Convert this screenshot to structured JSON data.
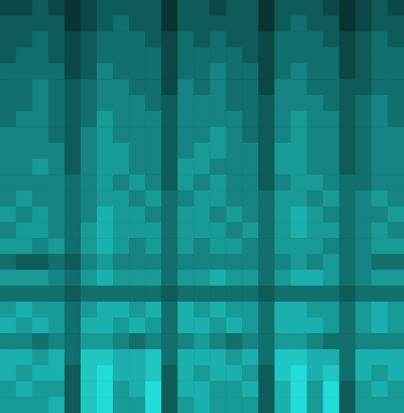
{
  "chart_data": {
    "type": "heatmap",
    "color": "#22dcd8",
    "zlim": [
      0,
      9
    ],
    "tick_labels": false,
    "grid": false,
    "z": [
      [
        2,
        2,
        3,
        2,
        1,
        2,
        3,
        3,
        3,
        3,
        1,
        3,
        3,
        2,
        3,
        3,
        1,
        3,
        3,
        3,
        2,
        1,
        2,
        3,
        2
      ],
      [
        3,
        3,
        3,
        3,
        1,
        2,
        3,
        4,
        3,
        3,
        1,
        3,
        3,
        3,
        3,
        3,
        1,
        3,
        4,
        3,
        3,
        1,
        2,
        3,
        3
      ],
      [
        3,
        3,
        4,
        3,
        2,
        3,
        4,
        4,
        4,
        3,
        2,
        4,
        3,
        4,
        3,
        3,
        2,
        4,
        4,
        4,
        3,
        2,
        3,
        4,
        3
      ],
      [
        3,
        4,
        4,
        3,
        2,
        3,
        4,
        4,
        4,
        4,
        2,
        4,
        4,
        4,
        4,
        3,
        2,
        4,
        4,
        4,
        4,
        2,
        3,
        4,
        4
      ],
      [
        4,
        4,
        4,
        4,
        2,
        3,
        5,
        4,
        4,
        4,
        2,
        4,
        4,
        5,
        4,
        4,
        2,
        4,
        5,
        4,
        4,
        2,
        3,
        4,
        4
      ],
      [
        4,
        4,
        5,
        4,
        3,
        4,
        5,
        5,
        4,
        4,
        2,
        5,
        4,
        5,
        4,
        4,
        2,
        5,
        5,
        4,
        4,
        3,
        3,
        4,
        4
      ],
      [
        4,
        4,
        5,
        4,
        3,
        4,
        5,
        5,
        5,
        4,
        3,
        5,
        5,
        5,
        4,
        4,
        3,
        5,
        5,
        5,
        4,
        3,
        4,
        5,
        4
      ],
      [
        4,
        5,
        5,
        4,
        3,
        4,
        6,
        5,
        5,
        5,
        3,
        5,
        5,
        5,
        5,
        4,
        3,
        5,
        6,
        5,
        5,
        3,
        4,
        5,
        4
      ],
      [
        5,
        5,
        5,
        4,
        3,
        5,
        6,
        5,
        5,
        5,
        3,
        5,
        5,
        6,
        5,
        4,
        3,
        5,
        6,
        5,
        5,
        3,
        4,
        5,
        5
      ],
      [
        5,
        5,
        5,
        5,
        3,
        5,
        6,
        6,
        5,
        5,
        3,
        5,
        6,
        6,
        5,
        5,
        3,
        6,
        6,
        5,
        5,
        3,
        4,
        5,
        5
      ],
      [
        5,
        5,
        6,
        5,
        3,
        5,
        6,
        6,
        5,
        5,
        3,
        6,
        6,
        5,
        5,
        5,
        3,
        6,
        6,
        5,
        5,
        3,
        4,
        5,
        5
      ],
      [
        5,
        5,
        5,
        5,
        4,
        5,
        6,
        5,
        6,
        5,
        3,
        6,
        5,
        6,
        5,
        5,
        3,
        5,
        6,
        6,
        5,
        4,
        4,
        5,
        5
      ],
      [
        5,
        6,
        5,
        5,
        4,
        5,
        6,
        6,
        5,
        6,
        4,
        5,
        6,
        6,
        5,
        5,
        4,
        6,
        6,
        5,
        6,
        4,
        5,
        6,
        5
      ],
      [
        6,
        5,
        6,
        5,
        4,
        5,
        7,
        6,
        6,
        5,
        4,
        6,
        6,
        5,
        6,
        5,
        4,
        6,
        7,
        6,
        5,
        4,
        5,
        5,
        6
      ],
      [
        5,
        6,
        6,
        5,
        4,
        6,
        7,
        6,
        6,
        6,
        4,
        6,
        6,
        6,
        5,
        6,
        4,
        6,
        7,
        6,
        6,
        4,
        5,
        6,
        5
      ],
      [
        6,
        6,
        5,
        6,
        4,
        6,
        7,
        6,
        5,
        6,
        4,
        6,
        5,
        6,
        6,
        5,
        4,
        6,
        6,
        6,
        5,
        4,
        5,
        6,
        6
      ],
      [
        4,
        3,
        3,
        4,
        3,
        5,
        6,
        5,
        5,
        5,
        4,
        5,
        5,
        5,
        5,
        5,
        4,
        5,
        6,
        5,
        6,
        4,
        5,
        4,
        4
      ],
      [
        6,
        6,
        6,
        5,
        4,
        6,
        7,
        6,
        6,
        6,
        4,
        6,
        6,
        7,
        6,
        6,
        4,
        6,
        7,
        7,
        6,
        4,
        5,
        6,
        6
      ],
      [
        4,
        4,
        4,
        4,
        3,
        4,
        4,
        4,
        4,
        4,
        3,
        4,
        4,
        4,
        4,
        4,
        3,
        4,
        4,
        4,
        4,
        3,
        4,
        4,
        4
      ],
      [
        6,
        7,
        6,
        6,
        4,
        6,
        7,
        7,
        6,
        7,
        4,
        7,
        6,
        7,
        6,
        6,
        4,
        7,
        7,
        6,
        6,
        4,
        6,
        7,
        6
      ],
      [
        7,
        6,
        7,
        6,
        4,
        7,
        7,
        6,
        7,
        6,
        4,
        7,
        7,
        6,
        7,
        6,
        4,
        7,
        7,
        7,
        6,
        4,
        6,
        7,
        6
      ],
      [
        5,
        5,
        4,
        5,
        4,
        6,
        6,
        5,
        4,
        5,
        4,
        5,
        6,
        5,
        4,
        5,
        4,
        6,
        6,
        5,
        4,
        4,
        5,
        5,
        5
      ],
      [
        7,
        7,
        6,
        7,
        4,
        8,
        8,
        7,
        7,
        8,
        4,
        7,
        7,
        7,
        6,
        7,
        4,
        8,
        8,
        7,
        7,
        4,
        7,
        7,
        7
      ],
      [
        7,
        6,
        7,
        7,
        3,
        8,
        9,
        7,
        7,
        8,
        3,
        7,
        6,
        7,
        7,
        6,
        3,
        8,
        9,
        7,
        8,
        4,
        7,
        6,
        7
      ],
      [
        6,
        7,
        6,
        6,
        3,
        8,
        9,
        6,
        7,
        9,
        3,
        7,
        7,
        6,
        6,
        7,
        3,
        7,
        9,
        6,
        9,
        3,
        6,
        7,
        6
      ],
      [
        6,
        6,
        6,
        7,
        3,
        8,
        9,
        6,
        6,
        9,
        3,
        6,
        7,
        6,
        6,
        6,
        3,
        7,
        9,
        6,
        9,
        3,
        6,
        6,
        6
      ]
    ]
  }
}
